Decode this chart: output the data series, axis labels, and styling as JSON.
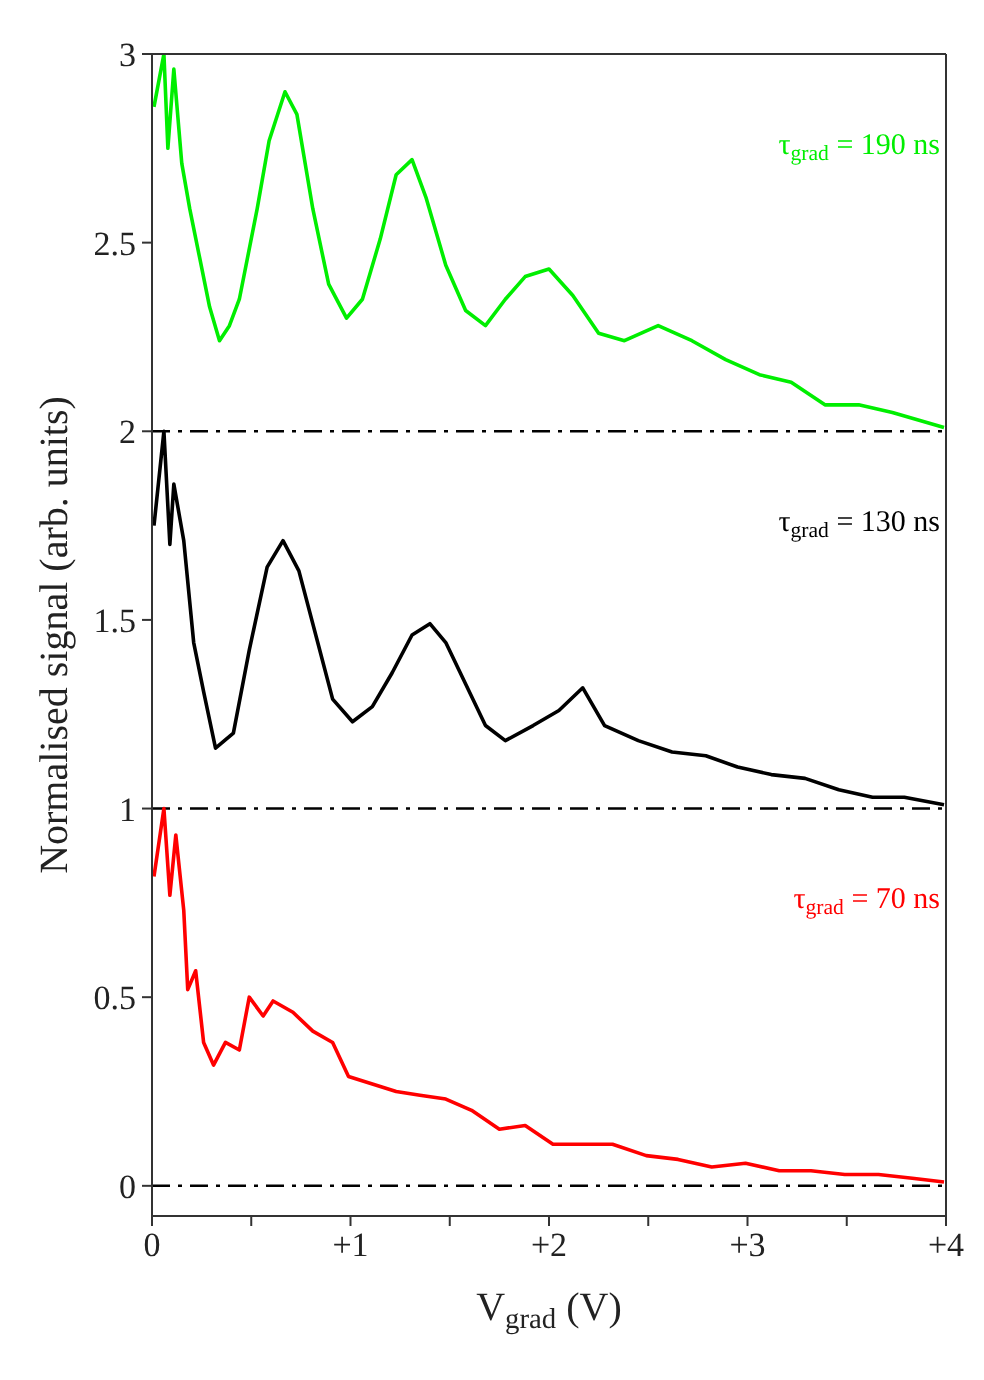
{
  "chart_data": {
    "type": "line",
    "xlabel": "V$_{grad}$ (V)",
    "ylabel": "Normalised signal (arb. units)",
    "xlim": [
      0,
      4
    ],
    "ylim": [
      -0.08,
      3
    ],
    "xticks": [
      0,
      {
        "value": 0.5,
        "label": null
      },
      {
        "value": 1,
        "label": "+1"
      },
      {
        "value": 1.5,
        "label": null
      },
      {
        "value": 2,
        "label": "+2"
      },
      {
        "value": 2.5,
        "label": null
      },
      {
        "value": 3,
        "label": "+3"
      },
      {
        "value": 3.5,
        "label": null
      },
      {
        "value": 4,
        "label": "+4"
      }
    ],
    "yticks": [
      0,
      0.5,
      1,
      1.5,
      2,
      2.5,
      3
    ],
    "marker": "none",
    "line_style": "solid",
    "ref_lines": [
      {
        "axis": "y",
        "value": 0,
        "color": "#000000"
      },
      {
        "axis": "y",
        "value": 1,
        "color": "#000000"
      },
      {
        "axis": "y",
        "value": 2,
        "color": "#000000"
      }
    ],
    "series": [
      {
        "name": "τ$_{grad}$ = 190 ns",
        "color": "#00ee00",
        "x": [
          0.01,
          0.06,
          0.08,
          0.11,
          0.15,
          0.19,
          0.24,
          0.29,
          0.34,
          0.39,
          0.44,
          0.53,
          0.59,
          0.67,
          0.73,
          0.81,
          0.89,
          0.98,
          1.06,
          1.15,
          1.23,
          1.31,
          1.38,
          1.48,
          1.58,
          1.68,
          1.78,
          1.88,
          2.0,
          2.12,
          2.25,
          2.38,
          2.55,
          2.72,
          2.89,
          3.06,
          3.22,
          3.39,
          3.56,
          3.73,
          3.86,
          3.99
        ],
        "values": [
          2.86,
          3.0,
          2.75,
          2.96,
          2.71,
          2.59,
          2.46,
          2.33,
          2.24,
          2.28,
          2.35,
          2.59,
          2.77,
          2.9,
          2.84,
          2.59,
          2.39,
          2.3,
          2.35,
          2.51,
          2.68,
          2.72,
          2.62,
          2.44,
          2.32,
          2.28,
          2.35,
          2.41,
          2.43,
          2.36,
          2.26,
          2.24,
          2.28,
          2.24,
          2.19,
          2.15,
          2.13,
          2.07,
          2.07,
          2.05,
          2.03,
          2.01
        ]
      },
      {
        "name": "τ$_{grad}$ = 130 ns",
        "color": "#000000",
        "x": [
          0.01,
          0.06,
          0.09,
          0.11,
          0.16,
          0.21,
          0.26,
          0.32,
          0.41,
          0.49,
          0.58,
          0.66,
          0.74,
          0.83,
          0.91,
          1.01,
          1.11,
          1.21,
          1.31,
          1.4,
          1.48,
          1.58,
          1.68,
          1.78,
          1.92,
          2.05,
          2.17,
          2.28,
          2.45,
          2.62,
          2.79,
          2.95,
          3.12,
          3.29,
          3.46,
          3.63,
          3.79,
          3.99
        ],
        "values": [
          1.75,
          2.0,
          1.7,
          1.86,
          1.71,
          1.44,
          1.31,
          1.16,
          1.2,
          1.42,
          1.64,
          1.71,
          1.63,
          1.45,
          1.29,
          1.23,
          1.27,
          1.36,
          1.46,
          1.49,
          1.44,
          1.33,
          1.22,
          1.18,
          1.22,
          1.26,
          1.32,
          1.22,
          1.18,
          1.15,
          1.14,
          1.11,
          1.09,
          1.08,
          1.05,
          1.03,
          1.03,
          1.01
        ]
      },
      {
        "name": "τ$_{grad}$ = 70 ns",
        "color": "#ff0000",
        "x": [
          0.01,
          0.06,
          0.09,
          0.12,
          0.16,
          0.18,
          0.22,
          0.26,
          0.31,
          0.37,
          0.44,
          0.49,
          0.56,
          0.61,
          0.71,
          0.81,
          0.91,
          0.99,
          1.11,
          1.23,
          1.35,
          1.48,
          1.61,
          1.75,
          1.88,
          2.02,
          2.15,
          2.32,
          2.49,
          2.65,
          2.82,
          2.99,
          3.16,
          3.32,
          3.49,
          3.66,
          3.83,
          3.99
        ],
        "values": [
          0.82,
          1.0,
          0.77,
          0.93,
          0.73,
          0.52,
          0.57,
          0.38,
          0.32,
          0.38,
          0.36,
          0.5,
          0.45,
          0.49,
          0.46,
          0.41,
          0.38,
          0.29,
          0.27,
          0.25,
          0.24,
          0.23,
          0.2,
          0.15,
          0.16,
          0.11,
          0.11,
          0.11,
          0.08,
          0.07,
          0.05,
          0.06,
          0.04,
          0.04,
          0.03,
          0.03,
          0.02,
          0.01
        ]
      }
    ]
  }
}
